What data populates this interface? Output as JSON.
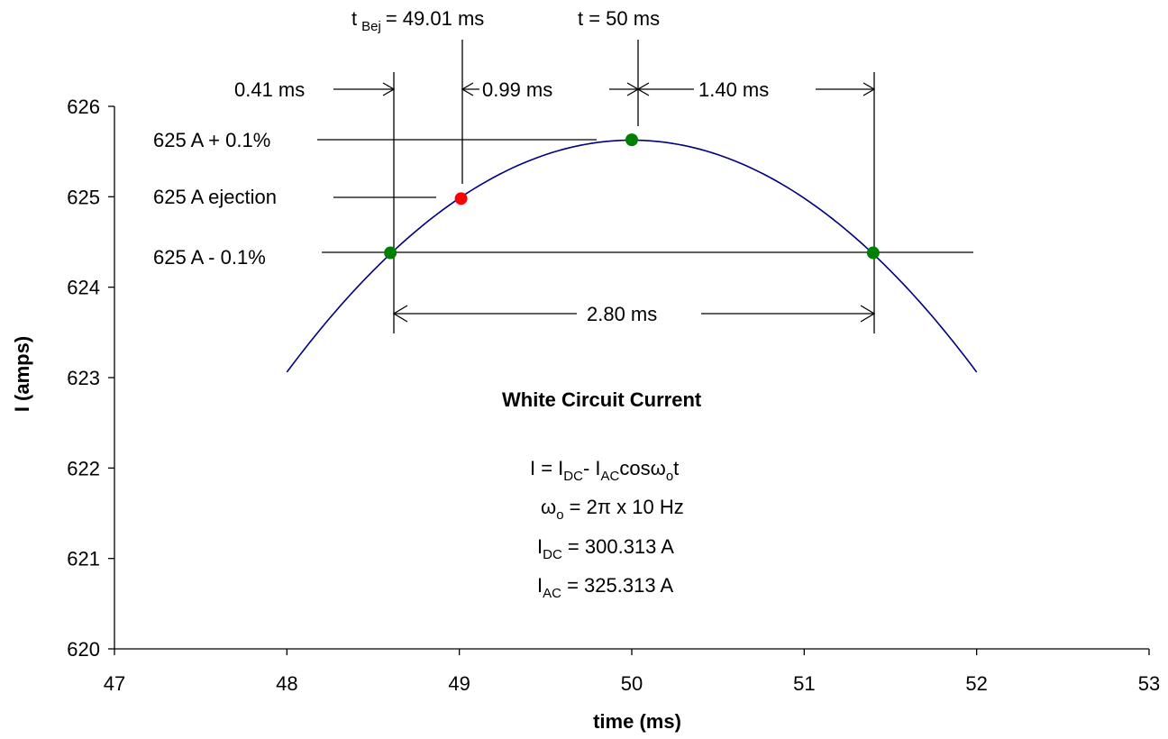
{
  "chart_data": {
    "type": "line",
    "xlabel": "time (ms)",
    "ylabel": "I (amps)",
    "xlim": [
      47,
      53
    ],
    "ylim": [
      620,
      626
    ],
    "xticks": [
      "47",
      "48",
      "49",
      "50",
      "51",
      "52",
      "53"
    ],
    "yticks": [
      "620",
      "621",
      "622",
      "623",
      "624",
      "625",
      "626"
    ],
    "curve": {
      "color": "#000080",
      "I_DC": 300.313,
      "I_AC": 325.313,
      "f_hz": 10,
      "x_range": [
        48,
        52
      ]
    },
    "points": [
      {
        "x": 48.6,
        "y": 624.38,
        "color": "#008000"
      },
      {
        "x": 49.01,
        "y": 624.98,
        "color": "#ff0000"
      },
      {
        "x": 50.0,
        "y": 625.63,
        "color": "#008000"
      },
      {
        "x": 51.4,
        "y": 624.38,
        "color": "#008000"
      }
    ],
    "annotations": {
      "t_bej_label": "t",
      "t_bej_sub": "Bej",
      "t_bej_value": "= 49.01 ms",
      "t_label": "t  = 50 ms",
      "d041": "0.41 ms",
      "d099": "0.99 ms",
      "d140": "1.40 ms",
      "d280": "2.80 ms",
      "lvl_plus": "625 A + 0.1%",
      "lvl_eject": "625 A ejection",
      "lvl_minus": "625 A - 0.1%",
      "title": "White Circuit Current",
      "eq1": {
        "a": "I = I",
        "b": "DC",
        "c": "- I",
        "d": "AC",
        "e": "cos",
        "f": "ω",
        "g": "o",
        "h": "t"
      },
      "eq2": {
        "a": "ω",
        "b": "o",
        "c": " = 2π x 10 Hz"
      },
      "eq3": {
        "a": "I",
        "b": "DC",
        "c": " = 300.313 A"
      },
      "eq4": {
        "a": "I",
        "b": "AC",
        "c": " = 325.313 A"
      }
    }
  }
}
